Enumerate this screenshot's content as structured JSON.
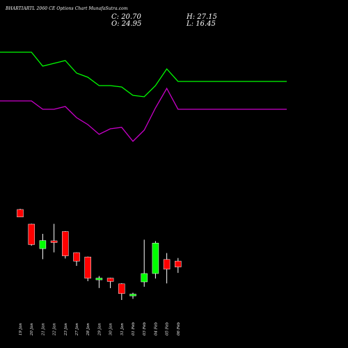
{
  "header": {
    "title": "BHARTIARTL 2060 CE Options Chart MunafaSutra.com",
    "close_label": "C: 20.70",
    "open_label": "O: 24.95",
    "high_label": "H: 27.15",
    "low_label": "L: 16.45"
  },
  "colors": {
    "background": "#000000",
    "up": "#00ff00",
    "down": "#ff0000",
    "wick": "#ffffff",
    "ma_green": "#00ff00",
    "ma_purple": "#cc00cc"
  },
  "chart_data": {
    "type": "candlestick",
    "categories": [
      "19 Jan",
      "20 Jan",
      "21 Jan",
      "22 Jan",
      "23 Jan",
      "27 Jan",
      "28 Jan",
      "29 Jan",
      "30 Jan",
      "31 Jan",
      "01 Feb",
      "03 Feb",
      "04 Feb",
      "05 Feb",
      "06 Feb"
    ],
    "candles": [
      {
        "open": 62.0,
        "high": 62.5,
        "low": 56.5,
        "close": 56.6
      },
      {
        "open": 51.5,
        "high": 51.8,
        "low": 36.0,
        "close": 36.8
      },
      {
        "open": 33.9,
        "high": 44.5,
        "low": 26.3,
        "close": 39.7
      },
      {
        "open": 39.5,
        "high": 51.7,
        "low": 31.2,
        "close": 38.5
      },
      {
        "open": 46.2,
        "high": 46.5,
        "low": 26.8,
        "close": 28.7
      },
      {
        "open": 31.0,
        "high": 31.2,
        "low": 21.5,
        "close": 24.9
      },
      {
        "open": 27.9,
        "high": 28.2,
        "low": 10.5,
        "close": 12.6
      },
      {
        "open": 11.5,
        "high": 14.2,
        "low": 5.6,
        "close": 12.7
      },
      {
        "open": 12.7,
        "high": 13.0,
        "low": 5.5,
        "close": 10.3
      },
      {
        "open": 8.6,
        "high": 9.0,
        "low": -3.0,
        "close": 1.6
      },
      {
        "open": 0.0,
        "high": 2.2,
        "low": -2.2,
        "close": 1.2
      },
      {
        "open": 10.0,
        "high": 40.3,
        "low": 6.5,
        "close": 16.0
      },
      {
        "open": 16.0,
        "high": 39.3,
        "low": 12.4,
        "close": 37.9
      },
      {
        "open": 26.1,
        "high": 30.7,
        "low": 8.9,
        "close": 19.1
      },
      {
        "open": 24.95,
        "high": 27.15,
        "low": 16.45,
        "close": 20.7
      }
    ],
    "series": [
      {
        "color": "#00ff00",
        "values": [
          175,
          175,
          165,
          167,
          169,
          160,
          157,
          151,
          151,
          150,
          144,
          143,
          151,
          163,
          154
        ]
      },
      {
        "color": "#cc00cc",
        "values": [
          140,
          140,
          134,
          134,
          136,
          128,
          123,
          116,
          120,
          121,
          111,
          119,
          135,
          149,
          134
        ]
      }
    ],
    "ylim": [
      -10,
      190
    ]
  }
}
